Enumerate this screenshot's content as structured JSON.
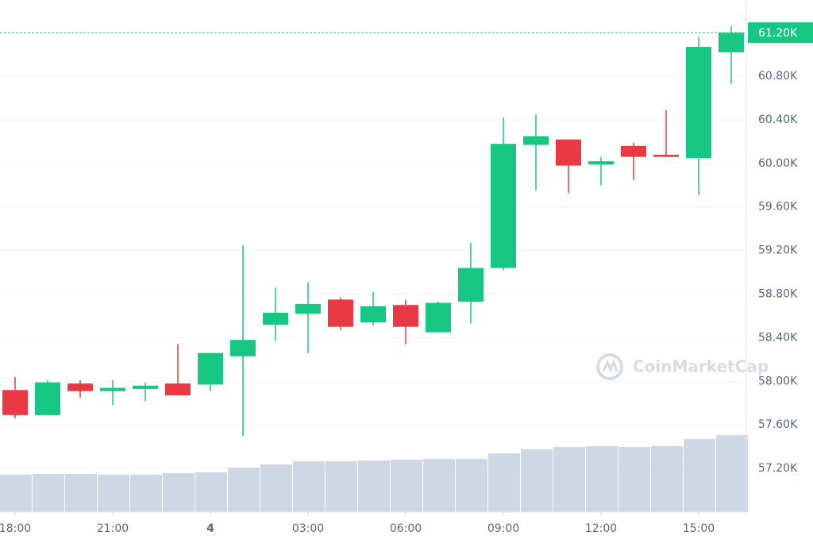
{
  "chart_data": {
    "type": "candlestick",
    "categories": [
      "18:00",
      null,
      null,
      "21:00",
      null,
      null,
      "4",
      null,
      null,
      "03:00",
      null,
      null,
      "06:00",
      null,
      null,
      "09:00",
      null,
      null,
      "12:00",
      null,
      null,
      "15:00",
      null
    ],
    "open": [
      57.92,
      57.69,
      57.98,
      57.91,
      57.93,
      57.98,
      57.97,
      58.23,
      58.52,
      58.62,
      58.75,
      58.54,
      58.7,
      58.45,
      58.73,
      59.04,
      60.17,
      60.22,
      59.99,
      60.16,
      60.08,
      60.05,
      61.02
    ],
    "high": [
      58.04,
      58.01,
      58.01,
      58.01,
      57.99,
      58.34,
      58.26,
      59.25,
      58.86,
      58.91,
      58.77,
      58.82,
      58.75,
      58.73,
      59.27,
      60.42,
      60.45,
      60.22,
      60.06,
      60.19,
      60.49,
      61.16,
      61.26
    ],
    "low": [
      57.66,
      57.69,
      57.85,
      57.78,
      57.82,
      57.87,
      57.91,
      57.5,
      58.37,
      58.26,
      58.47,
      58.51,
      58.34,
      58.45,
      58.53,
      59.02,
      59.75,
      59.73,
      59.8,
      59.85,
      60.06,
      59.71,
      60.73
    ],
    "close": [
      57.69,
      57.99,
      57.91,
      57.94,
      57.96,
      57.87,
      58.26,
      58.38,
      58.63,
      58.71,
      58.5,
      58.69,
      58.5,
      58.72,
      59.04,
      60.18,
      60.25,
      59.98,
      60.02,
      60.06,
      60.06,
      61.07,
      61.2
    ],
    "volume": [
      47,
      48,
      48,
      47,
      47,
      49,
      50,
      56,
      60,
      64,
      64,
      65,
      66,
      67,
      67,
      74,
      79,
      82,
      83,
      82,
      83,
      92,
      97
    ],
    "volume_ylim": [
      0,
      100
    ],
    "up_color": "#16c784",
    "down_color": "#ea3943",
    "volume_color": "#cfd6e4",
    "ylim": [
      56.8,
      61.5
    ],
    "yticks": [
      {
        "value": 61.2,
        "label": "61.20K"
      },
      {
        "value": 60.8,
        "label": "60.80K"
      },
      {
        "value": 60.4,
        "label": "60.40K"
      },
      {
        "value": 60.0,
        "label": "60.00K"
      },
      {
        "value": 59.6,
        "label": "59.60K"
      },
      {
        "value": 59.2,
        "label": "59.20K"
      },
      {
        "value": 58.8,
        "label": "58.80K"
      },
      {
        "value": 58.4,
        "label": "58.40K"
      },
      {
        "value": 58.0,
        "label": "58.00K"
      },
      {
        "value": 57.6,
        "label": "57.60K"
      },
      {
        "value": 57.2,
        "label": "57.20K"
      }
    ],
    "last_price": {
      "value": 61.2,
      "label": "61.20K"
    },
    "grid": true,
    "watermark": "CoinMarketCap"
  }
}
